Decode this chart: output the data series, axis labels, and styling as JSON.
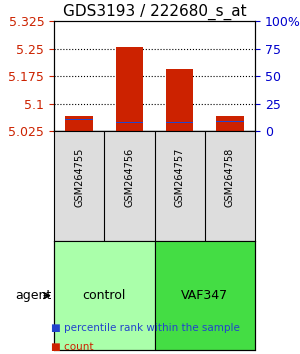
{
  "title": "GDS3193 / 222680_s_at",
  "samples": [
    "GSM264755",
    "GSM264756",
    "GSM264757",
    "GSM264758"
  ],
  "groups": [
    "control",
    "control",
    "VAF347",
    "VAF347"
  ],
  "group_colors": [
    "#aaffaa",
    "#aaffaa",
    "#44dd44",
    "#44dd44"
  ],
  "group_labels": [
    "control",
    "VAF347"
  ],
  "group_label_colors": [
    "#aaffaa",
    "#44dd44"
  ],
  "bar_values": [
    5.065,
    5.255,
    5.195,
    5.065
  ],
  "bar_base": 5.025,
  "percentile_values": [
    5.057,
    5.048,
    5.048,
    5.05
  ],
  "ylim_left": [
    5.025,
    5.325
  ],
  "yticks_left": [
    5.025,
    5.1,
    5.175,
    5.25,
    5.325
  ],
  "yticks_right": [
    0,
    25,
    50,
    75,
    100
  ],
  "ytick_right_labels": [
    "0",
    "25",
    "50",
    "75",
    "100%"
  ],
  "bar_color": "#cc2200",
  "percentile_color": "#2244cc",
  "bar_width": 0.55,
  "hline_style": "dotted",
  "hline_color": "#000000",
  "hlines": [
    5.1,
    5.175,
    5.25
  ],
  "legend_items": [
    {
      "label": "count",
      "color": "#cc2200"
    },
    {
      "label": "percentile rank within the sample",
      "color": "#2244cc"
    }
  ],
  "agent_label": "agent",
  "left_color": "#cc2200",
  "right_color": "#0000cc",
  "title_fontsize": 11,
  "tick_fontsize": 9,
  "label_fontsize": 9
}
